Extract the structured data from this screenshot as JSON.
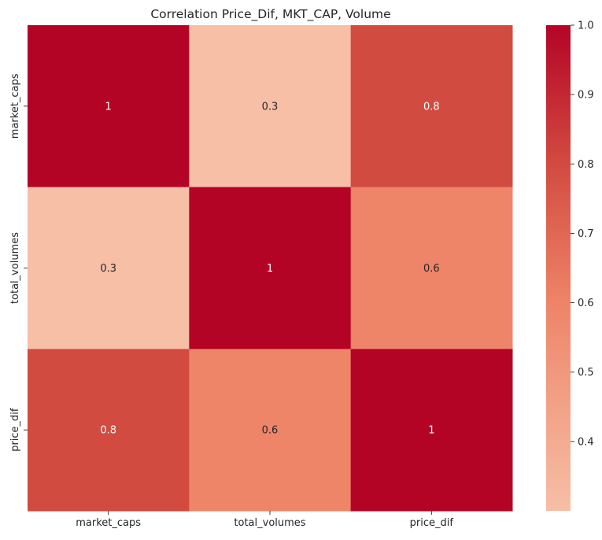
{
  "chart_data": {
    "type": "heatmap",
    "title": "Correlation Price_Dif, MKT_CAP, Volume",
    "x_labels": [
      "market_caps",
      "total_volumes",
      "price_dif"
    ],
    "y_labels": [
      "market_caps",
      "total_volumes",
      "price_dif"
    ],
    "values": [
      [
        1.0,
        0.3,
        0.8
      ],
      [
        0.3,
        1.0,
        0.6
      ],
      [
        0.8,
        0.6,
        1.0
      ]
    ],
    "annotations": [
      [
        "1",
        "0.3",
        "0.8"
      ],
      [
        "0.3",
        "1",
        "0.6"
      ],
      [
        "0.8",
        "0.6",
        "1"
      ]
    ],
    "colorbar": {
      "range": [
        0.3,
        1.0
      ],
      "ticks": [
        "0.4",
        "0.5",
        "0.6",
        "0.7",
        "0.8",
        "0.9",
        "1.0"
      ],
      "tick_values": [
        0.4,
        0.5,
        0.6,
        0.7,
        0.8,
        0.9,
        1.0
      ],
      "colormap": "coolwarm (upper half)",
      "stops": [
        {
          "v": 0.3,
          "color": "#f6bfa6"
        },
        {
          "v": 0.6,
          "color": "#ee8468"
        },
        {
          "v": 0.8,
          "color": "#d24b40"
        },
        {
          "v": 1.0,
          "color": "#b40426"
        }
      ]
    },
    "annotation_colors": {
      "light": "#ffffff",
      "dark": "#262626"
    }
  }
}
